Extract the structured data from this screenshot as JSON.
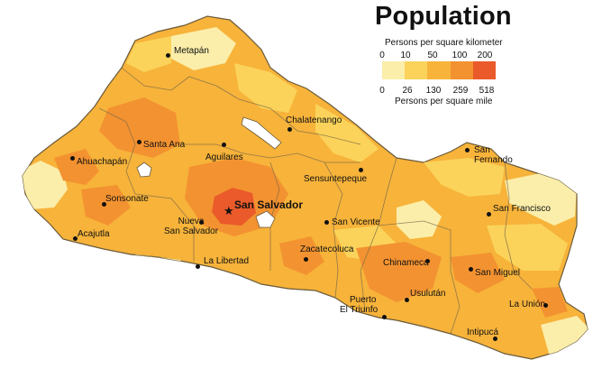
{
  "title": "Population",
  "legend": {
    "top_label": "Persons per square kilometer",
    "top_ticks": [
      "0",
      "10",
      "50",
      "100",
      "200"
    ],
    "bottom_ticks": [
      "0",
      "26",
      "130",
      "259",
      "518"
    ],
    "bottom_label": "Persons per square mile",
    "colors": [
      "#fbeeaa",
      "#fbd35a",
      "#f7b33a",
      "#f39230",
      "#ea5a2a"
    ]
  },
  "colors": {
    "land_base": "#f7b33a",
    "land_low": "#fbd35a",
    "land_very_low": "#fbeeaa",
    "land_high": "#f39230",
    "land_highest": "#ea5a2a",
    "water": "#ffffff",
    "borders": "#6a5a3a"
  },
  "capital": {
    "name": "San Salvador",
    "icon": "star-icon"
  },
  "cities": [
    {
      "name": "Metapán"
    },
    {
      "name": "Chalatenango"
    },
    {
      "name": "Santa Ana"
    },
    {
      "name": "Ahuachapán"
    },
    {
      "name": "Aguilares"
    },
    {
      "name": "Sensuntepeque"
    },
    {
      "name": "Sonsonate"
    },
    {
      "name": "San Fernando",
      "lines": [
        "San",
        "Fernando"
      ]
    },
    {
      "name": "San Francisco"
    },
    {
      "name": "Nueva San Salvador",
      "lines": [
        "Nueva",
        "San Salvador"
      ]
    },
    {
      "name": "San Vicente"
    },
    {
      "name": "Acajutla"
    },
    {
      "name": "Zacatecoluca"
    },
    {
      "name": "La Libertad"
    },
    {
      "name": "Chinameca"
    },
    {
      "name": "San Miguel"
    },
    {
      "name": "Usulután"
    },
    {
      "name": "Puerto El Triunfo",
      "lines": [
        "Puerto",
        "El Triunfo"
      ]
    },
    {
      "name": "La Unión"
    },
    {
      "name": "Intipucá"
    }
  ]
}
